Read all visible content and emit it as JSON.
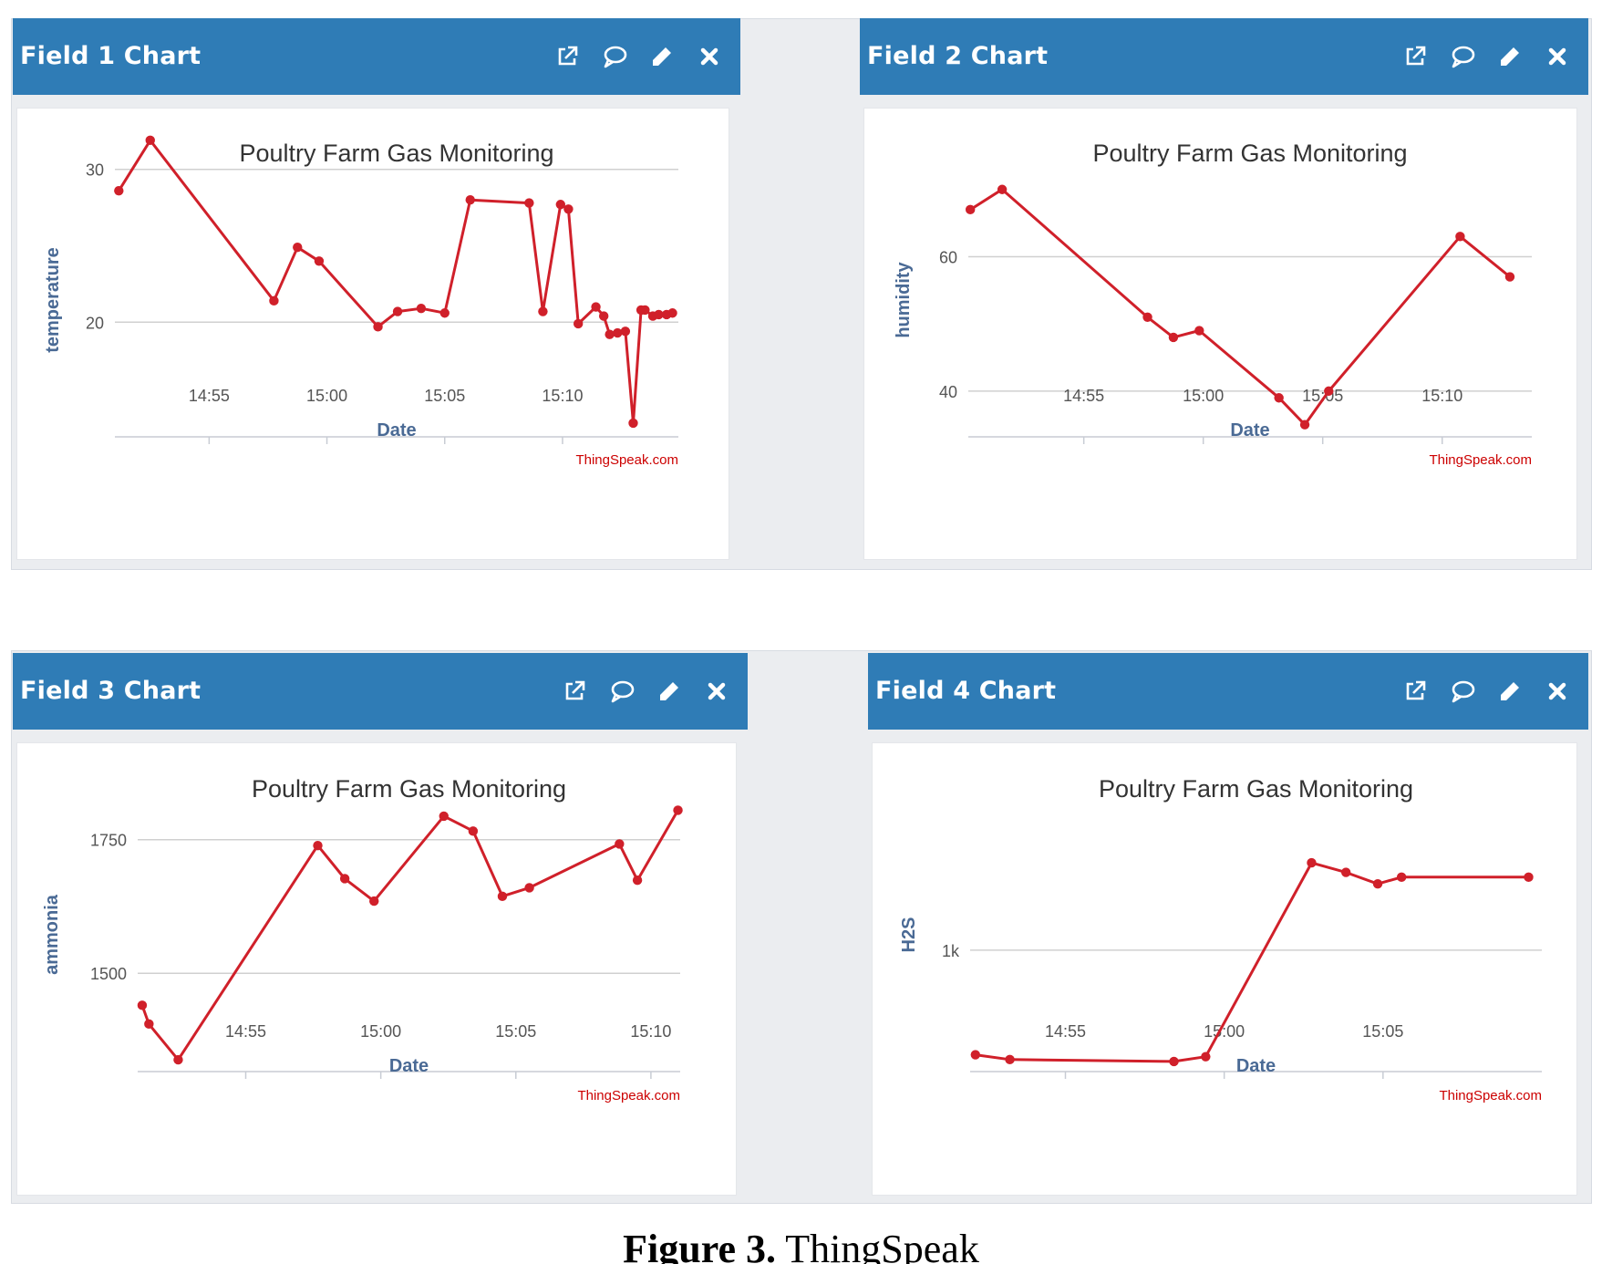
{
  "panels": [
    {
      "title": "Field 1 Chart",
      "chart_data": {
        "type": "line",
        "title": "Poultry Farm Gas Monitoring",
        "xlabel": "Date",
        "ylabel": "temperature",
        "credit": "ThingSpeak.com",
        "xlim": [
          "14:51:00",
          "15:14:55"
        ],
        "ylim": [
          12.5,
          30.4
        ],
        "xticks": [
          "14:55",
          "15:00",
          "15:05",
          "15:10"
        ],
        "yticks": [
          20,
          30
        ],
        "color": "#d0202a",
        "series": [
          {
            "x": [
              "14:51:10",
              "14:52:30",
              "14:57:45",
              "14:58:45",
              "14:59:40",
              "15:02:10",
              "15:03:00",
              "15:04:00",
              "15:05:00",
              "15:06:05",
              "15:08:35",
              "15:09:10",
              "15:09:55",
              "15:10:15",
              "15:10:40",
              "15:11:25",
              "15:11:45",
              "15:12:00",
              "15:12:20",
              "15:12:40",
              "15:13:00",
              "15:13:20",
              "15:13:30",
              "15:13:50",
              "15:14:05",
              "15:14:25",
              "15:14:40"
            ],
            "y": [
              28.6,
              31.9,
              21.4,
              24.9,
              24.0,
              19.7,
              20.7,
              20.9,
              20.6,
              28.0,
              27.8,
              20.7,
              27.7,
              27.4,
              19.9,
              21.0,
              20.4,
              19.2,
              19.3,
              19.4,
              13.4,
              20.8,
              20.8,
              20.4,
              20.5,
              20.5,
              20.6
            ]
          }
        ]
      }
    },
    {
      "title": "Field 2 Chart",
      "chart_data": {
        "type": "line",
        "title": "Poultry Farm Gas Monitoring",
        "xlabel": "Date",
        "ylabel": "humidity",
        "credit": "ThingSpeak.com",
        "xlim": [
          "14:50:10",
          "15:13:45"
        ],
        "ylim": [
          33.2,
          73.9
        ],
        "xticks": [
          "14:55",
          "15:00",
          "15:05",
          "15:10"
        ],
        "yticks": [
          40,
          60
        ],
        "color": "#d0202a",
        "series": [
          {
            "x": [
              "14:50:15",
              "14:51:35",
              "14:57:40",
              "14:58:45",
              "14:59:50",
              "15:03:10",
              "15:04:15",
              "15:05:15",
              "15:10:45",
              "15:12:50"
            ],
            "y": [
              67,
              70,
              51,
              48,
              49,
              39,
              35,
              40,
              63,
              57
            ]
          }
        ]
      }
    },
    {
      "title": "Field 3 Chart",
      "chart_data": {
        "type": "line",
        "title": "Poultry Farm Gas Monitoring",
        "xlabel": "Date",
        "ylabel": "ammonia",
        "credit": "ThingSpeak.com",
        "xlim": [
          "14:51:00",
          "15:11:05"
        ],
        "ylim": [
          1316,
          1828
        ],
        "xticks": [
          "14:55",
          "15:00",
          "15:05",
          "15:10"
        ],
        "yticks": [
          1500,
          1750
        ],
        "color": "#d0202a",
        "series": [
          {
            "x": [
              "14:51:10",
              "14:51:25",
              "14:52:30",
              "14:57:40",
              "14:58:40",
              "14:59:45",
              "15:02:20",
              "15:03:25",
              "15:04:30",
              "15:05:30",
              "15:08:50",
              "15:09:30",
              "15:11:00"
            ],
            "y": [
              1440,
              1405,
              1338,
              1739,
              1677,
              1635,
              1794,
              1766,
              1644,
              1660,
              1742,
              1674,
              1805
            ]
          }
        ]
      }
    },
    {
      "title": "Field 4 Chart",
      "chart_data": {
        "type": "line",
        "title": "Poultry Farm Gas Monitoring",
        "xlabel": "Date",
        "ylabel": "H2S",
        "ytick_labels": [
          "1k"
        ],
        "credit": "ThingSpeak.com",
        "xlim": [
          "14:52:00",
          "15:10:00"
        ],
        "ylim": [
          747,
          1317
        ],
        "xticks": [
          "14:55",
          "15:00",
          "15:05"
        ],
        "yticks": [
          1000
        ],
        "color": "#d0202a",
        "series": [
          {
            "x": [
              "14:52:10",
              "14:53:15",
              "14:58:25",
              "14:59:25",
              "15:02:45",
              "15:03:50",
              "15:04:50",
              "15:05:35",
              "15:09:35"
            ],
            "y": [
              782,
              772,
              768,
              778,
              1182,
              1162,
              1138,
              1152,
              1152
            ]
          }
        ]
      }
    }
  ],
  "icons": [
    "external-link-icon",
    "comment-icon",
    "pencil-icon",
    "close-icon"
  ],
  "colors": {
    "header": "#2f7cb6",
    "series": "#d0202a",
    "title_text": "#333333",
    "axis_label": "#4a6a95",
    "credit": "#cc0000"
  },
  "caption": {
    "prefix": "Figure 3.",
    "text": " ThingSpeak"
  }
}
